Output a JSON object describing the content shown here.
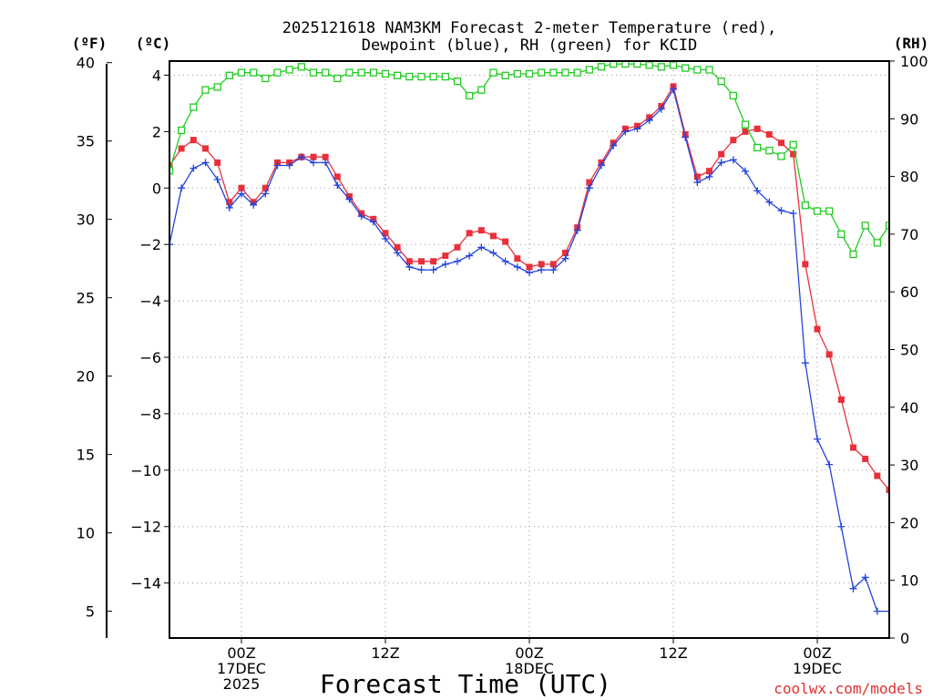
{
  "chart_data": {
    "type": "line",
    "title": "2025121618 NAM3KM Forecast 2-meter Temperature (red),",
    "title_line2": "Dewpoint (blue), RH (green) for KCID",
    "xlabel": "Forecast Time (UTC)",
    "left_outer_unit": "(ºF)",
    "left_inner_unit": "(ºC)",
    "right_unit": "(RH)",
    "watermark": "coolwx.com/models",
    "x_hours_range": [
      -6,
      54
    ],
    "x_ticks": [
      {
        "hour": 0,
        "lines": [
          "00Z",
          "17DEC",
          "2025"
        ]
      },
      {
        "hour": 12,
        "lines": [
          "12Z"
        ]
      },
      {
        "hour": 24,
        "lines": [
          "00Z",
          "18DEC"
        ]
      },
      {
        "hour": 36,
        "lines": [
          "12Z"
        ]
      },
      {
        "hour": 48,
        "lines": [
          "00Z",
          "19DEC"
        ]
      }
    ],
    "ylim_c": [
      -15.95,
      4.5
    ],
    "yticks_c": [
      4,
      2,
      0,
      -2,
      -4,
      -6,
      -8,
      -10,
      -12,
      -14
    ],
    "ylim_f": [
      3.29,
      40.1
    ],
    "yticks_f": [
      40,
      35,
      30,
      25,
      20,
      15,
      10,
      5
    ],
    "ylim_rh": [
      0,
      100
    ],
    "yticks_rh": [
      100,
      90,
      80,
      70,
      60,
      50,
      40,
      30,
      20,
      10,
      0
    ],
    "hours": [
      -6,
      -5,
      -4,
      -3,
      -2,
      -1,
      0,
      1,
      2,
      3,
      4,
      5,
      6,
      7,
      8,
      9,
      10,
      11,
      12,
      13,
      14,
      15,
      16,
      17,
      18,
      19,
      20,
      21,
      22,
      23,
      24,
      25,
      26,
      27,
      28,
      29,
      30,
      31,
      32,
      33,
      34,
      35,
      36,
      37,
      38,
      39,
      40,
      41,
      42,
      43,
      44,
      45,
      46,
      47,
      48,
      49,
      50,
      51,
      52,
      53,
      54
    ],
    "series": [
      {
        "name": "2-meter Temperature",
        "unit": "C",
        "color": "#e8303c",
        "marker": "filled-square",
        "values": [
          0.8,
          1.4,
          1.7,
          1.4,
          0.9,
          -0.5,
          0,
          -0.5,
          0,
          0.9,
          0.9,
          1.1,
          1.1,
          1.1,
          0.4,
          -0.3,
          -0.9,
          -1.1,
          -1.6,
          -2.1,
          -2.6,
          -2.6,
          -2.6,
          -2.4,
          -2.1,
          -1.6,
          -1.5,
          -1.7,
          -1.9,
          -2.5,
          -2.8,
          -2.7,
          -2.7,
          -2.3,
          -1.4,
          0.2,
          0.9,
          1.6,
          2.1,
          2.2,
          2.5,
          2.9,
          3.6,
          1.9,
          0.4,
          0.6,
          1.2,
          1.7,
          2,
          2.1,
          1.9,
          1.6,
          1.2,
          -2.7,
          -5,
          -5.9,
          -7.5,
          -9.2,
          -9.6,
          -10.2,
          -10.7
        ]
      },
      {
        "name": "Dewpoint",
        "unit": "C",
        "color": "#2244dd",
        "marker": "plus",
        "values": [
          -2,
          0,
          0.7,
          0.9,
          0.3,
          -0.7,
          -0.2,
          -0.6,
          -0.2,
          0.8,
          0.8,
          1.1,
          0.9,
          0.9,
          0.1,
          -0.4,
          -1,
          -1.2,
          -1.8,
          -2.3,
          -2.8,
          -2.9,
          -2.9,
          -2.7,
          -2.6,
          -2.4,
          -2.1,
          -2.3,
          -2.6,
          -2.8,
          -3,
          -2.9,
          -2.9,
          -2.5,
          -1.5,
          0,
          0.8,
          1.5,
          2,
          2.1,
          2.4,
          2.8,
          3.5,
          1.8,
          0.2,
          0.4,
          0.9,
          1.0,
          0.6,
          -0.1,
          -0.5,
          -0.8,
          -0.9,
          -6.2,
          -8.9,
          -9.8,
          -12,
          -14.2,
          -13.8,
          -15,
          -15
        ]
      },
      {
        "name": "RH",
        "unit": "%",
        "color": "#22cc22",
        "marker": "open-square",
        "values": [
          81,
          88,
          92,
          95,
          95.5,
          97.5,
          98,
          98,
          97,
          98,
          98.5,
          99,
          98,
          98,
          97,
          98,
          98,
          98,
          97.8,
          97.5,
          97.3,
          97.3,
          97.3,
          97.3,
          96.5,
          94,
          95,
          98,
          97.5,
          97.8,
          97.8,
          98,
          98,
          98,
          98,
          98.5,
          99,
          99.5,
          99.5,
          99.5,
          99.3,
          99,
          99.3,
          98.8,
          98.5,
          98.5,
          96.5,
          94,
          89,
          85,
          84.5,
          83.5,
          85.5,
          75,
          74,
          74,
          70,
          66.5,
          71.5,
          68.5,
          71.5
        ]
      }
    ]
  }
}
